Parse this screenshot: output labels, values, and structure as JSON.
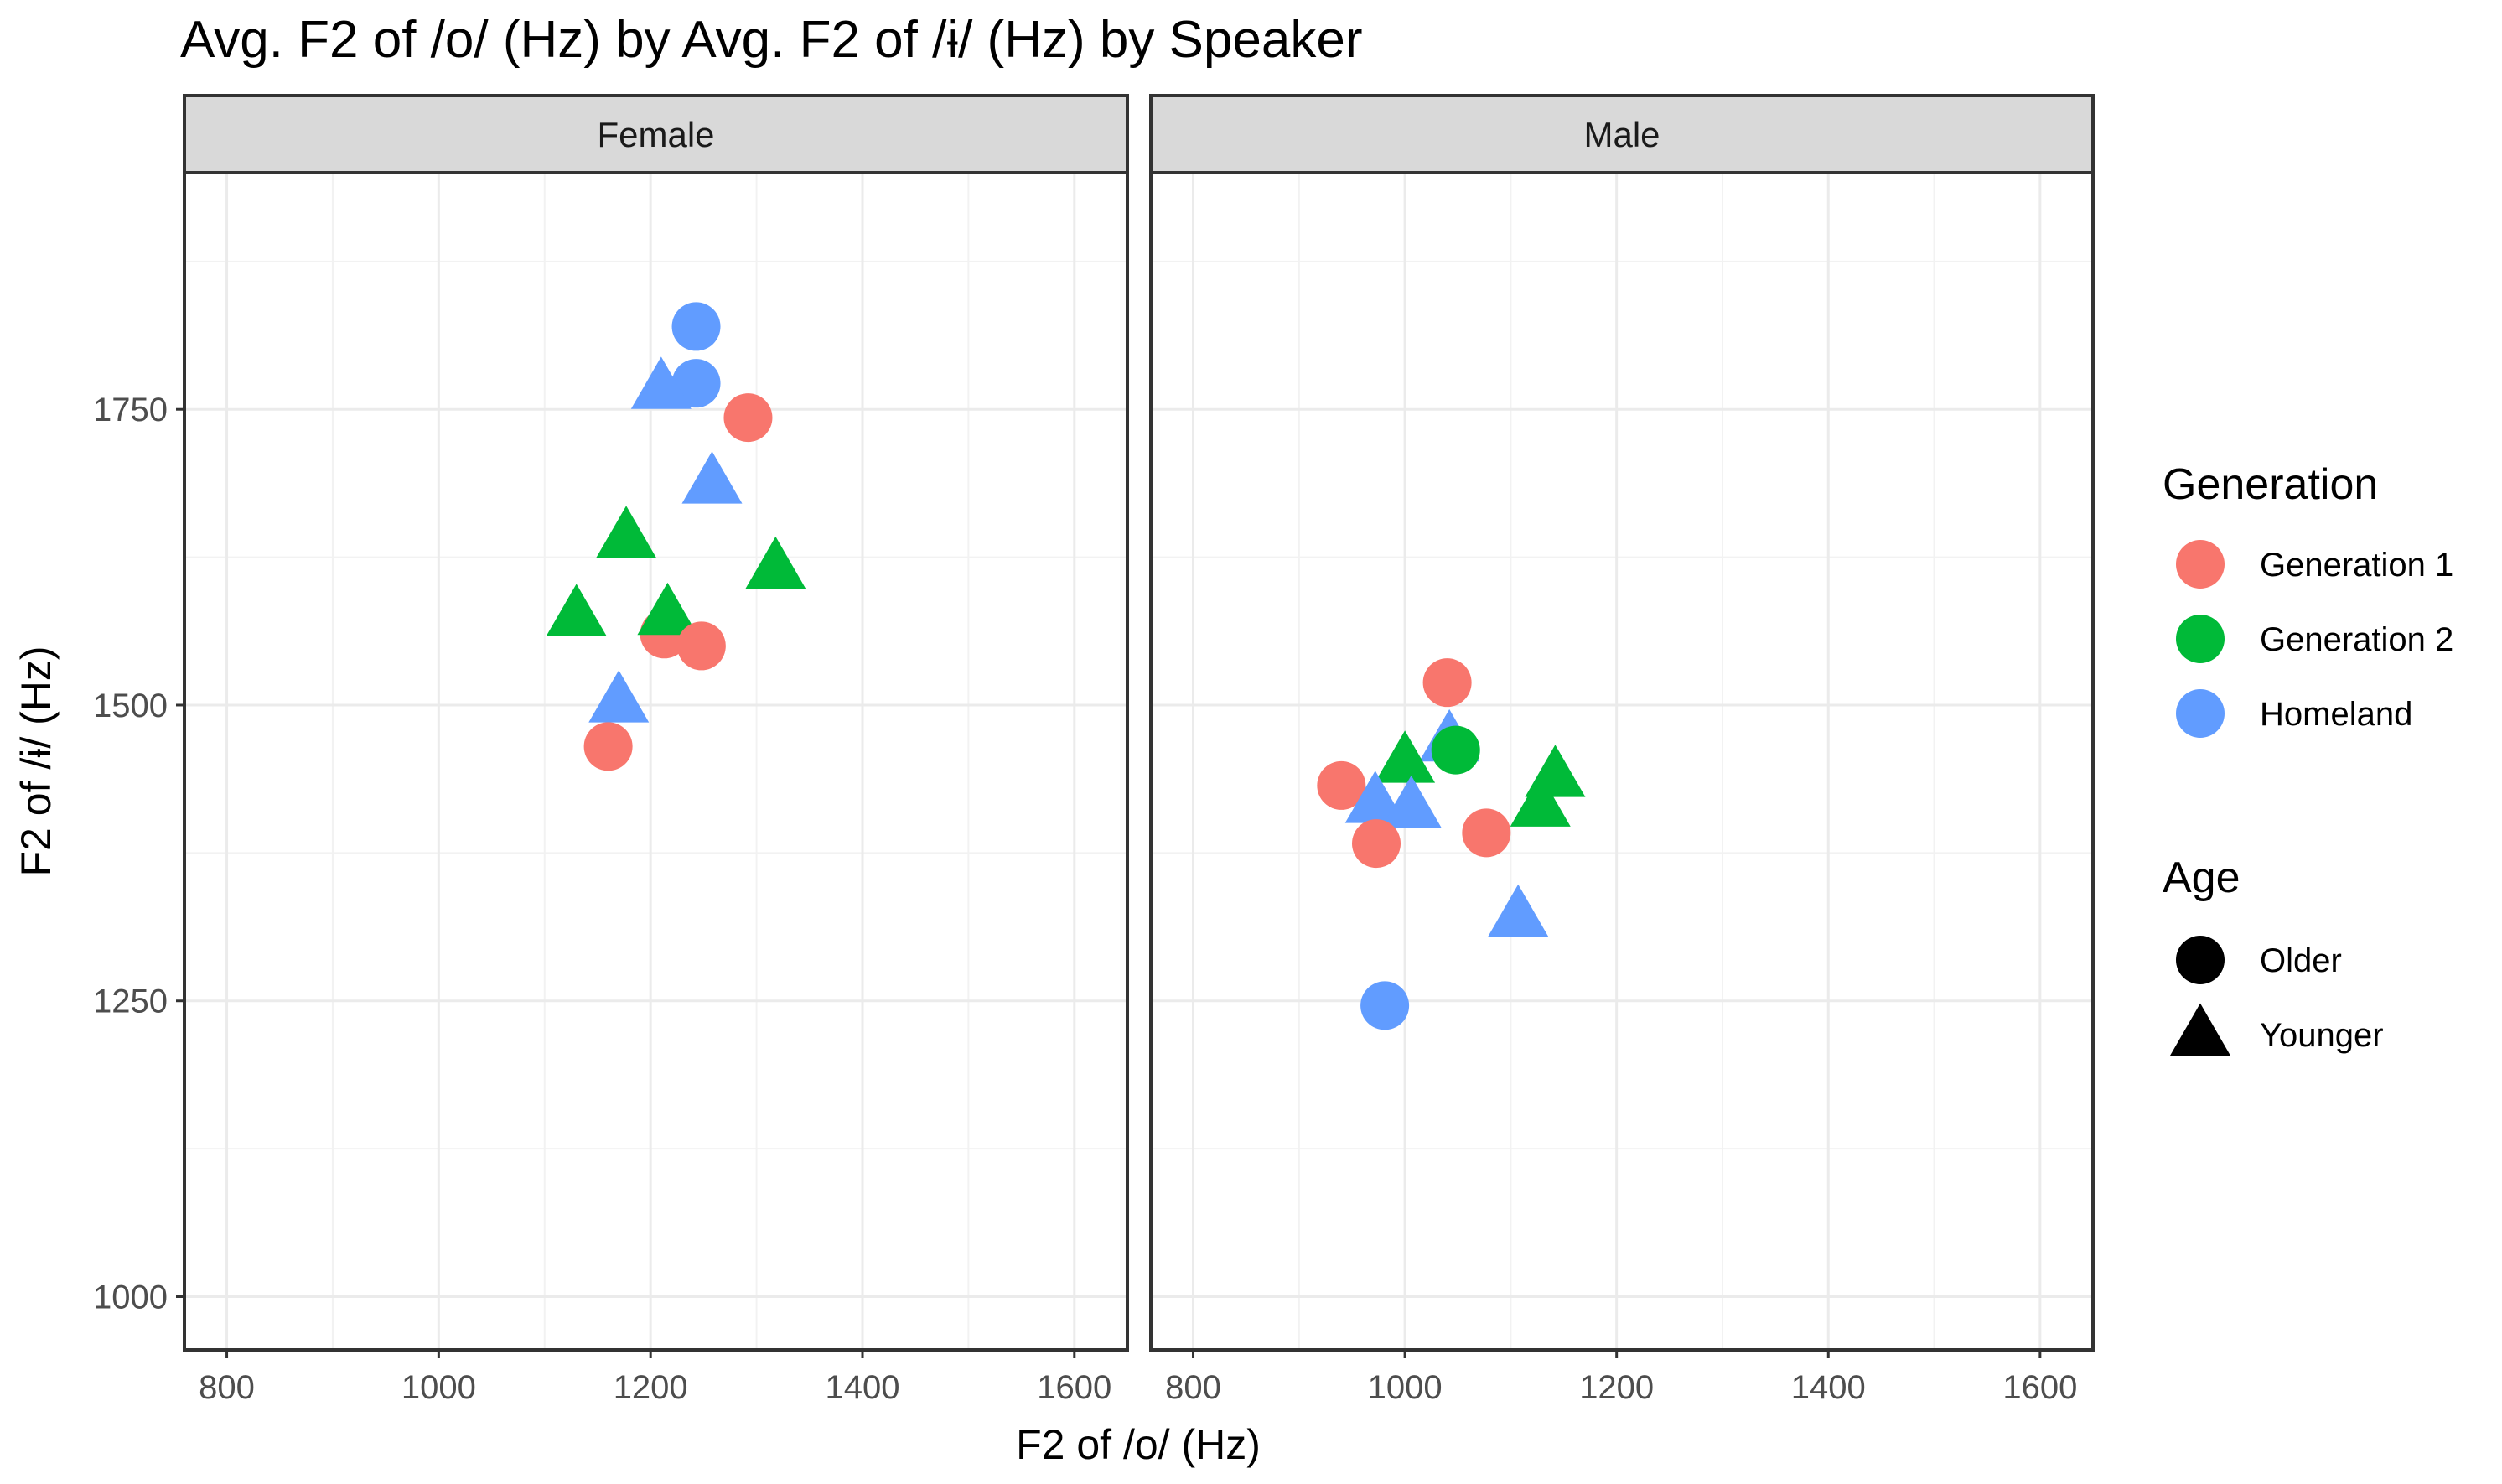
{
  "chart_data": {
    "type": "scatter",
    "title": "Avg. F2 of /o/ (Hz) by Avg. F2 of /ɨ/ (Hz) by Speaker",
    "xlabel": "F2 of /o/ (Hz)",
    "ylabel": "F2 of /ɨ/ (Hz)",
    "xlim": [
      760,
      1650
    ],
    "ylim": [
      955,
      1950
    ],
    "x_ticks": [
      "800",
      "1000",
      "1200",
      "1400",
      "1600"
    ],
    "y_ticks": [
      "1000",
      "1250",
      "1500",
      "1750"
    ],
    "x_tick_values": [
      800,
      1000,
      1200,
      1400,
      1600
    ],
    "y_tick_values": [
      1000,
      1250,
      1500,
      1750
    ],
    "grid": true,
    "facets": [
      "Female",
      "Male"
    ],
    "legend_placement": "right",
    "legend": {
      "color_title": "Generation",
      "color_entries": [
        {
          "label": "Generation 1",
          "color": "#F8766D"
        },
        {
          "label": "Generation 2",
          "color": "#00BA38"
        },
        {
          "label": "Homeland",
          "color": "#619CFF"
        }
      ],
      "shape_title": "Age",
      "shape_entries": [
        {
          "label": "Older",
          "shape": "circle"
        },
        {
          "label": "Younger",
          "shape": "triangle"
        }
      ]
    },
    "points": [
      {
        "facet": "Female",
        "generation": "Homeland",
        "age": "Older",
        "x": 1243,
        "y": 1820
      },
      {
        "facet": "Female",
        "generation": "Homeland",
        "age": "Older",
        "x": 1243,
        "y": 1772
      },
      {
        "facet": "Female",
        "generation": "Homeland",
        "age": "Younger",
        "x": 1210,
        "y": 1768
      },
      {
        "facet": "Female",
        "generation": "Generation 1",
        "age": "Older",
        "x": 1292,
        "y": 1743
      },
      {
        "facet": "Female",
        "generation": "Homeland",
        "age": "Younger",
        "x": 1258,
        "y": 1688
      },
      {
        "facet": "Female",
        "generation": "Generation 2",
        "age": "Younger",
        "x": 1177,
        "y": 1642
      },
      {
        "facet": "Female",
        "generation": "Generation 2",
        "age": "Younger",
        "x": 1318,
        "y": 1616
      },
      {
        "facet": "Female",
        "generation": "Generation 2",
        "age": "Younger",
        "x": 1130,
        "y": 1576
      },
      {
        "facet": "Female",
        "generation": "Generation 1",
        "age": "Older",
        "x": 1213,
        "y": 1560
      },
      {
        "facet": "Female",
        "generation": "Generation 2",
        "age": "Younger",
        "x": 1216,
        "y": 1577
      },
      {
        "facet": "Female",
        "generation": "Generation 1",
        "age": "Older",
        "x": 1248,
        "y": 1550
      },
      {
        "facet": "Female",
        "generation": "Homeland",
        "age": "Younger",
        "x": 1170,
        "y": 1503
      },
      {
        "facet": "Female",
        "generation": "Generation 1",
        "age": "Older",
        "x": 1160,
        "y": 1465
      },
      {
        "facet": "Male",
        "generation": "Generation 1",
        "age": "Older",
        "x": 1040,
        "y": 1519
      },
      {
        "facet": "Male",
        "generation": "Homeland",
        "age": "Younger",
        "x": 1042,
        "y": 1470
      },
      {
        "facet": "Male",
        "generation": "Generation 2",
        "age": "Older",
        "x": 1048,
        "y": 1462
      },
      {
        "facet": "Male",
        "generation": "Generation 2",
        "age": "Younger",
        "x": 1000,
        "y": 1452
      },
      {
        "facet": "Male",
        "generation": "Generation 1",
        "age": "Older",
        "x": 940,
        "y": 1432
      },
      {
        "facet": "Male",
        "generation": "Homeland",
        "age": "Younger",
        "x": 972,
        "y": 1418
      },
      {
        "facet": "Male",
        "generation": "Homeland",
        "age": "Younger",
        "x": 1006,
        "y": 1414
      },
      {
        "facet": "Male",
        "generation": "Generation 2",
        "age": "Younger",
        "x": 1142,
        "y": 1440
      },
      {
        "facet": "Male",
        "generation": "Generation 2",
        "age": "Younger",
        "x": 1128,
        "y": 1415
      },
      {
        "facet": "Male",
        "generation": "Generation 1",
        "age": "Older",
        "x": 1077,
        "y": 1392
      },
      {
        "facet": "Male",
        "generation": "Generation 1",
        "age": "Older",
        "x": 973,
        "y": 1383
      },
      {
        "facet": "Male",
        "generation": "Homeland",
        "age": "Younger",
        "x": 1107,
        "y": 1322
      },
      {
        "facet": "Male",
        "generation": "Homeland",
        "age": "Older",
        "x": 981,
        "y": 1246
      }
    ]
  }
}
